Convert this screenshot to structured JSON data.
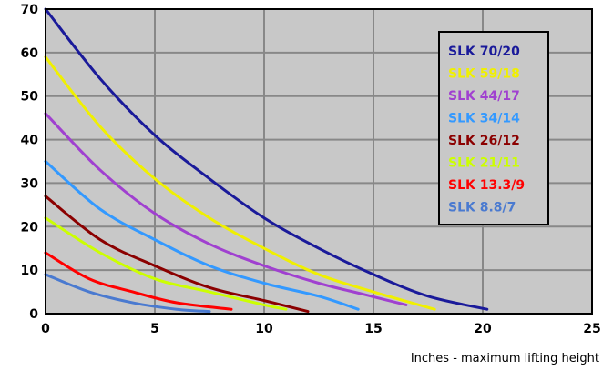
{
  "chart_data": {
    "type": "line",
    "title": "",
    "xlabel": "Inches - maximum lifting height",
    "ylabel": "",
    "xlim": [
      0,
      25
    ],
    "ylim": [
      0,
      70
    ],
    "xticks": [
      "0",
      "5",
      "10",
      "15",
      "20",
      "25"
    ],
    "yticks": [
      "0",
      "10",
      "20",
      "30",
      "40",
      "50",
      "60",
      "70"
    ],
    "grid": true,
    "legend_position": "top-right",
    "background": "#c8c8c8",
    "series": [
      {
        "name": "SLK 70/20",
        "color": "#1a1a9a",
        "x": [
          0,
          2.5,
          5,
          7.5,
          10,
          12.5,
          15,
          17.5,
          20.2
        ],
        "y": [
          70,
          54,
          41,
          31,
          22,
          15,
          9,
          4,
          1
        ]
      },
      {
        "name": "SLK 59/18",
        "color": "#f0f000",
        "x": [
          0,
          2.5,
          5,
          7.5,
          10,
          12.5,
          15,
          17.8
        ],
        "y": [
          59,
          43,
          31,
          22,
          15,
          9,
          5,
          1
        ]
      },
      {
        "name": "SLK 44/17",
        "color": "#a040d0",
        "x": [
          0,
          2.5,
          5,
          7.5,
          10,
          12.5,
          14.5,
          16.5
        ],
        "y": [
          46,
          33,
          23,
          16,
          11,
          7,
          4.5,
          2
        ]
      },
      {
        "name": "SLK 34/14",
        "color": "#3399ff",
        "x": [
          0,
          2.5,
          5,
          7.5,
          10,
          12.5,
          14.3
        ],
        "y": [
          35,
          24,
          17,
          11,
          7,
          4,
          1
        ]
      },
      {
        "name": "SLK 26/12",
        "color": "#8b0000",
        "x": [
          0,
          2.5,
          5,
          7.5,
          10,
          12
        ],
        "y": [
          27,
          17,
          11,
          6,
          3,
          0.5
        ]
      },
      {
        "name": "SLK 21/11",
        "color": "#ccff00",
        "x": [
          0,
          2.5,
          5,
          7.5,
          10,
          11
        ],
        "y": [
          22,
          14,
          8,
          5,
          2,
          1
        ]
      },
      {
        "name": "SLK 13.3/9",
        "color": "#ff0000",
        "x": [
          0,
          2,
          4,
          6,
          8.5
        ],
        "y": [
          14,
          8,
          5,
          2.5,
          1
        ]
      },
      {
        "name": "SLK 8.8/7",
        "color": "#4a7ad0",
        "x": [
          0,
          2,
          4,
          6,
          7.5
        ],
        "y": [
          9,
          5,
          2.5,
          1,
          0.5
        ]
      }
    ]
  }
}
